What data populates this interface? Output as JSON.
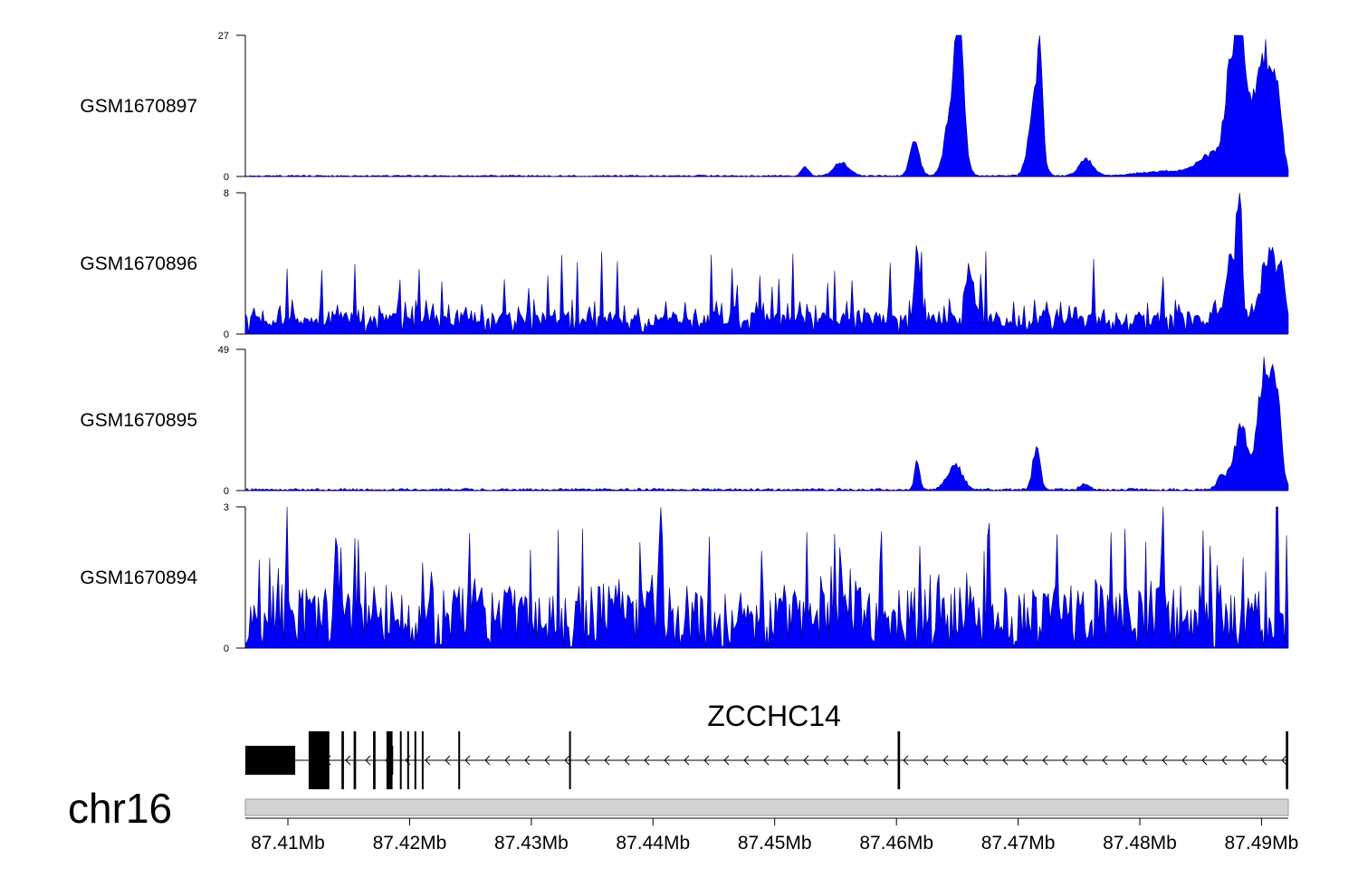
{
  "chart_data": {
    "type": "area",
    "chromosome": "chr16",
    "x_range_mb": [
      87.4065,
      87.4922
    ],
    "tracks": [
      {
        "name": "GSM1670897",
        "ymin": "0",
        "ymax": "27",
        "ylim": [
          0,
          27
        ],
        "noise": 0.25,
        "peaks": [
          [
            87.4525,
            2.0,
            0.0003
          ],
          [
            87.4555,
            3.0,
            0.0006
          ],
          [
            87.4615,
            7.0,
            0.0004
          ],
          [
            87.4648,
            20.0,
            0.0006
          ],
          [
            87.4652,
            24.0,
            0.0003
          ],
          [
            87.4714,
            16.0,
            0.0005
          ],
          [
            87.4718,
            19.0,
            0.0002
          ],
          [
            87.4756,
            3.5,
            0.0006
          ],
          [
            87.482,
            1.0,
            0.002
          ],
          [
            87.486,
            4.5,
            0.0012
          ],
          [
            87.4875,
            20.0,
            0.0005
          ],
          [
            87.4882,
            27.0,
            0.0003
          ],
          [
            87.489,
            15.0,
            0.0008
          ],
          [
            87.4903,
            22.0,
            0.0005
          ],
          [
            87.4913,
            18.0,
            0.0004
          ]
        ]
      },
      {
        "name": "GSM1670896",
        "ymin": "0",
        "ymax": "8",
        "ylim": [
          0,
          8
        ],
        "noise": 1.8,
        "peaks": [
          [
            87.4617,
            4.8,
            0.0002
          ],
          [
            87.466,
            3.3,
            0.0003
          ],
          [
            87.4875,
            4.5,
            0.0004
          ],
          [
            87.4882,
            7.8,
            0.0002
          ],
          [
            87.4905,
            4.0,
            0.0005
          ],
          [
            87.4915,
            3.0,
            0.0004
          ]
        ]
      },
      {
        "name": "GSM1670895",
        "ymin": "0",
        "ymax": "49",
        "ylim": [
          0,
          49
        ],
        "noise": 0.4,
        "peaks": [
          [
            87.4617,
            12.0,
            0.0002
          ],
          [
            87.4648,
            10.0,
            0.0006
          ],
          [
            87.4715,
            17.0,
            0.0003
          ],
          [
            87.4755,
            2.0,
            0.0004
          ],
          [
            87.4867,
            5.0,
            0.0004
          ],
          [
            87.4883,
            24.0,
            0.0006
          ],
          [
            87.4902,
            46.0,
            0.0005
          ],
          [
            87.4912,
            38.0,
            0.0004
          ]
        ]
      },
      {
        "name": "GSM1670894",
        "ymin": "0",
        "ymax": "3",
        "ylim": [
          0,
          3
        ],
        "noise": 0.9,
        "peaks": [
          [
            87.4099,
            3.0,
            0.0001
          ],
          [
            87.4407,
            3.0,
            0.0001
          ],
          [
            87.4676,
            3.0,
            0.0001
          ],
          [
            87.4819,
            3.0,
            0.0001
          ],
          [
            87.4913,
            2.5,
            0.0001
          ]
        ]
      }
    ],
    "gene": {
      "name": "ZCCHC14",
      "strand": "-",
      "start_mb": 87.4065,
      "end_mb": 87.4922,
      "exons_mb": [
        [
          87.4065,
          87.4106
        ],
        [
          87.4117,
          87.4134
        ],
        [
          87.4144,
          87.4146
        ],
        [
          87.4154,
          87.4156
        ],
        [
          87.417,
          87.4172
        ],
        [
          87.4181,
          87.4186
        ],
        [
          87.4192,
          87.4193
        ],
        [
          87.4198,
          87.4199
        ],
        [
          87.4204,
          87.4205
        ],
        [
          87.421,
          87.4211
        ],
        [
          87.424,
          87.4241
        ],
        [
          87.4331,
          87.4332
        ],
        [
          87.4601,
          87.4603
        ],
        [
          87.492,
          87.4922
        ]
      ]
    },
    "axis": {
      "ticks_mb": [
        87.41,
        87.42,
        87.43,
        87.44,
        87.45,
        87.46,
        87.47,
        87.48,
        87.49
      ],
      "tick_labels": [
        "87.41Mb",
        "87.42Mb",
        "87.43Mb",
        "87.44Mb",
        "87.45Mb",
        "87.46Mb",
        "87.47Mb",
        "87.48Mb",
        "87.49Mb"
      ]
    },
    "fill_color": "#0000ff",
    "outline_color": "#00007a",
    "ideogram_color": "#d3d3d3"
  }
}
